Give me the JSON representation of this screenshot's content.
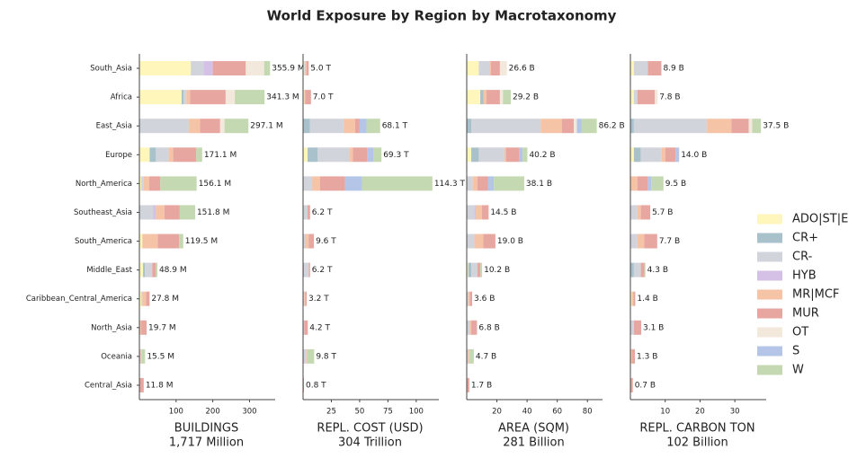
{
  "chart_data": {
    "type": "bar",
    "title": "World Exposure by Region by Macrotaxonomy",
    "categories": [
      "South_Asia",
      "Africa",
      "East_Asia",
      "Europe",
      "North_America",
      "Southeast_Asia",
      "South_America",
      "Middle_East",
      "Caribbean_Central_America",
      "North_Asia",
      "Oceania",
      "Central_Asia"
    ],
    "series": [
      {
        "name": "ADO|ST|E",
        "color": "#fff6bb"
      },
      {
        "name": "CR+",
        "color": "#a9c1cb"
      },
      {
        "name": "CR-",
        "color": "#d2d4dc"
      },
      {
        "name": "HYB",
        "color": "#d5c1e5"
      },
      {
        "name": "MR|MCF",
        "color": "#f5c3a6"
      },
      {
        "name": "MUR",
        "color": "#e8a6a1"
      },
      {
        "name": "OT",
        "color": "#f2e8db"
      },
      {
        "name": "S",
        "color": "#b4c5e7"
      },
      {
        "name": "W",
        "color": "#c4d9b1"
      }
    ],
    "panels": [
      {
        "xlabel": "BUILDINGS",
        "subtitle": "1,717 Million",
        "xlim": [
          0,
          370
        ],
        "xticks": [
          100,
          200,
          300
        ],
        "values": [
          [
            140,
            0,
            35,
            25,
            0,
            90,
            50,
            0,
            16
          ],
          [
            115,
            5,
            8,
            0,
            10,
            97,
            25,
            0,
            81
          ],
          [
            0,
            0,
            135,
            0,
            30,
            55,
            12,
            0,
            65
          ],
          [
            28,
            17,
            35,
            0,
            12,
            63,
            0,
            0,
            16
          ],
          [
            5,
            0,
            7,
            0,
            15,
            30,
            0,
            0,
            99
          ],
          [
            0,
            0,
            38,
            7,
            23,
            42,
            0,
            0,
            42
          ],
          [
            8,
            0,
            0,
            0,
            42,
            58,
            0,
            0,
            11.5
          ],
          [
            10,
            5,
            20,
            0,
            0,
            10,
            0,
            0,
            3.9
          ],
          [
            5,
            0,
            3,
            0,
            10,
            9.8,
            0,
            0,
            0
          ],
          [
            0,
            0,
            0,
            0,
            4.7,
            15,
            0,
            0,
            0
          ],
          [
            0,
            0,
            3,
            0,
            2.5,
            0,
            0,
            0,
            10
          ],
          [
            0,
            0,
            0,
            0,
            0,
            11.8,
            0,
            0,
            0
          ]
        ],
        "totals": [
          355.9,
          341.3,
          297.1,
          171.1,
          156.1,
          151.8,
          119.5,
          48.9,
          27.8,
          19.7,
          15.5,
          11.8
        ],
        "total_labels": [
          "355.9 M",
          "341.3 M",
          "297.1 M",
          "171.1 M",
          "156.1 M",
          "151.8 M",
          "119.5 M",
          "48.9 M",
          "27.8 M",
          "19.7 M",
          "15.5 M",
          "11.8 M"
        ]
      },
      {
        "xlabel": "REPL. COST (USD)",
        "subtitle": "304 Trillion",
        "xlim": [
          0,
          120
        ],
        "xticks": [
          25,
          50,
          75,
          100
        ],
        "values": [
          [
            1,
            0,
            1,
            0,
            1,
            2,
            0,
            0,
            0
          ],
          [
            1,
            0,
            0,
            0,
            1,
            5,
            0,
            0,
            0
          ],
          [
            0,
            6,
            30,
            0,
            10,
            4,
            0,
            6,
            12.1
          ],
          [
            4,
            9,
            28,
            0,
            3,
            13,
            0,
            5,
            7.3
          ],
          [
            0,
            0,
            8,
            0,
            7,
            22,
            0,
            15,
            62.3
          ],
          [
            0,
            0,
            4,
            0,
            0,
            2.2,
            0,
            0,
            0
          ],
          [
            0,
            0,
            2,
            0,
            3,
            4.6,
            0,
            0,
            0
          ],
          [
            0,
            1,
            4,
            0,
            0,
            1.2,
            0,
            0,
            0
          ],
          [
            0,
            0,
            1,
            0,
            1,
            1.2,
            0,
            0,
            0
          ],
          [
            0,
            0,
            1,
            0,
            0,
            3.2,
            0,
            0,
            0
          ],
          [
            0,
            0,
            3,
            0,
            1,
            0,
            0,
            0,
            5.8
          ],
          [
            0,
            0,
            0,
            0,
            0,
            0.8,
            0,
            0,
            0
          ]
        ],
        "totals": [
          5.0,
          7.0,
          68.1,
          69.3,
          114.3,
          6.2,
          9.6,
          6.2,
          3.2,
          4.2,
          9.8,
          0.8
        ],
        "total_labels": [
          "5.0 T",
          "7.0 T",
          "68.1 T",
          "69.3 T",
          "114.3 T",
          "6.2 T",
          "9.6 T",
          "6.2 T",
          "3.2 T",
          "4.2 T",
          "9.8 T",
          "0.8 T"
        ]
      },
      {
        "xlabel": "AREA (SQM)",
        "subtitle": "281 Billion",
        "xlim": [
          0,
          90
        ],
        "xticks": [
          20,
          40,
          60,
          80
        ],
        "values": [
          [
            8,
            0,
            7,
            0,
            1,
            6,
            4.6,
            0,
            0
          ],
          [
            9,
            2,
            0,
            0,
            2,
            9,
            2,
            0,
            5.2
          ],
          [
            0,
            3,
            46,
            0,
            14,
            8,
            2,
            3,
            10.2
          ],
          [
            3,
            5,
            17,
            0,
            1,
            9,
            0,
            2,
            3.2
          ],
          [
            0,
            0,
            4,
            0,
            3,
            7,
            0,
            4,
            20.1
          ],
          [
            0,
            0,
            5,
            1,
            4,
            4.5,
            0,
            0,
            0
          ],
          [
            0,
            0,
            5,
            0,
            6,
            8,
            0,
            0,
            0
          ],
          [
            1,
            2,
            4,
            0,
            0,
            2,
            0,
            0,
            1.2
          ],
          [
            0,
            0,
            1,
            0,
            1,
            1.6,
            0,
            0,
            0
          ],
          [
            0,
            0,
            2,
            0,
            1,
            3.8,
            0,
            0,
            0
          ],
          [
            0,
            0,
            1,
            0,
            1,
            0,
            0,
            0,
            2.7
          ],
          [
            0,
            0,
            0,
            0,
            0,
            1.7,
            0,
            0,
            0
          ]
        ],
        "totals": [
          26.6,
          29.2,
          86.2,
          40.2,
          38.1,
          14.5,
          19.0,
          10.2,
          3.6,
          6.8,
          4.7,
          1.7
        ],
        "total_labels": [
          "26.6 B",
          "29.2 B",
          "86.2 B",
          "40.2 B",
          "38.1 B",
          "14.5 B",
          "19.0 B",
          "10.2 B",
          "3.6 B",
          "6.8 B",
          "4.7 B",
          "1.7 B"
        ]
      },
      {
        "xlabel": "REPL. CARBON TON",
        "subtitle": "102 Billion",
        "xlim": [
          0,
          39
        ],
        "xticks": [
          10,
          20,
          30
        ],
        "values": [
          [
            1,
            0,
            4,
            0,
            0,
            3.9,
            0,
            0,
            0
          ],
          [
            1,
            0,
            1,
            0,
            0,
            5,
            0.8,
            0,
            0
          ],
          [
            0,
            1,
            21,
            0,
            7,
            5,
            1,
            0,
            2.5
          ],
          [
            1,
            2,
            6,
            0,
            1,
            3,
            0,
            1,
            0
          ],
          [
            0,
            0,
            0,
            0,
            2,
            3,
            0,
            1,
            3.5
          ],
          [
            0,
            0,
            2,
            0,
            1,
            2.7,
            0,
            0,
            0
          ],
          [
            0,
            0,
            2,
            0,
            2,
            3.7,
            0,
            0,
            0
          ],
          [
            0,
            1,
            2,
            0,
            0,
            1,
            0,
            0,
            0.3
          ],
          [
            0.4,
            0,
            0,
            0,
            0.5,
            0.5,
            0,
            0,
            0
          ],
          [
            0,
            0,
            1,
            0,
            0,
            2.1,
            0,
            0,
            0
          ],
          [
            0,
            0,
            0,
            0,
            0.5,
            0.8,
            0,
            0,
            0
          ],
          [
            0,
            0,
            0,
            0,
            0,
            0.7,
            0,
            0,
            0
          ]
        ],
        "totals": [
          8.9,
          7.8,
          37.5,
          14.0,
          9.5,
          5.7,
          7.7,
          4.3,
          1.4,
          3.1,
          1.3,
          0.7
        ],
        "total_labels": [
          "8.9 B",
          "7.8 B",
          "37.5 B",
          "14.0 B",
          "9.5 B",
          "5.7 B",
          "7.7 B",
          "4.3 B",
          "1.4 B",
          "3.1 B",
          "1.3 B",
          "0.7 B"
        ]
      }
    ]
  }
}
